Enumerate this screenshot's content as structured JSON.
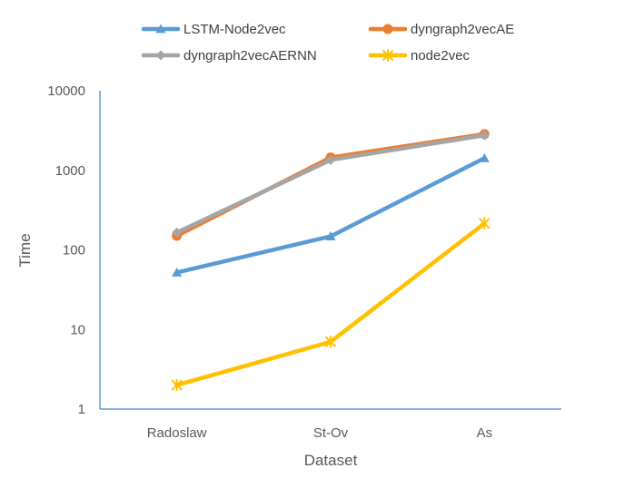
{
  "chart_data": {
    "type": "line",
    "title": "",
    "xlabel": "Dataset",
    "ylabel": "Time",
    "yscale": "log",
    "ylim": [
      1,
      10000
    ],
    "yticks": [
      "1",
      "10",
      "100",
      "1000",
      "10000"
    ],
    "categories": [
      "Radoslaw",
      "St-Ov",
      "As"
    ],
    "legend_position": "top",
    "grid": false,
    "series": [
      {
        "name": "LSTM-Node2vec",
        "values": [
          52,
          148,
          1420
        ],
        "color": "#5b9bd5",
        "marker": "triangle"
      },
      {
        "name": "dyngraph2vecAE",
        "values": [
          150,
          1450,
          2850
        ],
        "color": "#ed7d31",
        "marker": "circle"
      },
      {
        "name": "dyngraph2vecAERNN",
        "values": [
          165,
          1350,
          2750
        ],
        "color": "#a5a5a5",
        "marker": "diamond"
      },
      {
        "name": "node2vec",
        "values": [
          2,
          7,
          215
        ],
        "color": "#ffc000",
        "marker": "star"
      }
    ]
  }
}
